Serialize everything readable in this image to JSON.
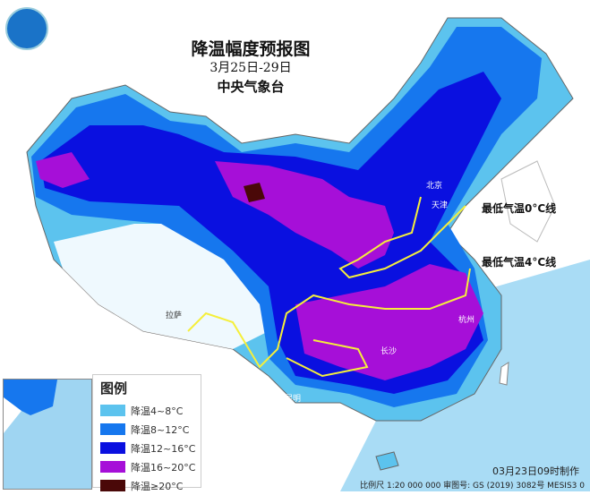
{
  "header": {
    "title": "降温幅度预报图",
    "date_range": "3月25日-29日",
    "agency": "中央气象台"
  },
  "isolines": [
    {
      "label": "最低气温0°C线",
      "color": "#f5ef3a"
    },
    {
      "label": "最低气温4°C线",
      "color": "#f5ef3a"
    }
  ],
  "legend": {
    "title": "图例",
    "items": [
      {
        "label": "降温4~8°C",
        "color": "#5cc3ee"
      },
      {
        "label": "降温8~12°C",
        "color": "#1677ee"
      },
      {
        "label": "降温12~16°C",
        "color": "#0a10e0"
      },
      {
        "label": "降温16~20°C",
        "color": "#a60fd8"
      },
      {
        "label": "降温≥20°C",
        "color": "#4a0808"
      }
    ]
  },
  "cities": [
    "北京",
    "天津",
    "拉萨",
    "昆明",
    "长沙",
    "杭州"
  ],
  "footer": {
    "made_time": "03月23日09时制作",
    "scale_and_approval": "比例尺 1:20 000 000  审图号: GS (2019) 3082号 MESIS3 0"
  }
}
